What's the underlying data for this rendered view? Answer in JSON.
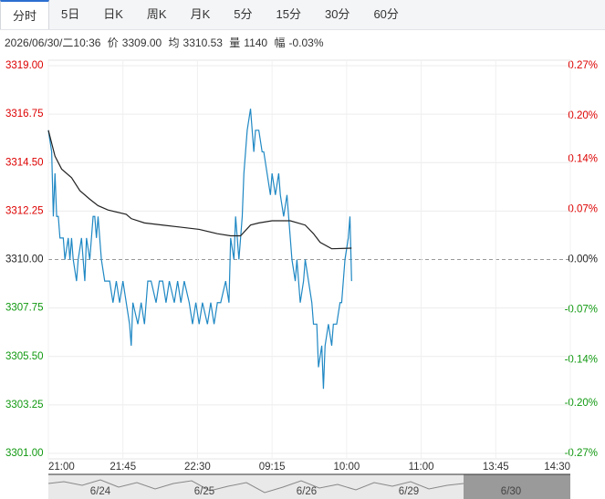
{
  "tabs": [
    "分时",
    "5日",
    "日K",
    "周K",
    "月K",
    "5分",
    "15分",
    "30分",
    "60分"
  ],
  "info": {
    "time": "2026/06/30/二10:36",
    "price_label": "价",
    "price": "3309.00",
    "avg_label": "均",
    "avg": "3310.53",
    "vol_label": "量",
    "vol": "1140",
    "amp_label": "幅",
    "amp": "-0.03%"
  },
  "chart_data": {
    "type": "line",
    "baseline": 3310,
    "grid": true,
    "up_color": "#dd0000",
    "down_color": "#119911",
    "flat_color": "#222222",
    "xlim": [
      0,
      315
    ],
    "xticks": [
      {
        "value": 0,
        "label": "21:00"
      },
      {
        "value": 45,
        "label": "21:45"
      },
      {
        "value": 90,
        "label": "22:30"
      },
      {
        "value": 135,
        "label": "09:15"
      },
      {
        "value": 180,
        "label": "10:00"
      },
      {
        "value": 225,
        "label": "11:00"
      },
      {
        "value": 270,
        "label": "13:45"
      },
      {
        "value": 315,
        "label": "14:30"
      }
    ],
    "ylim": [
      3301,
      3319
    ],
    "yticks": [
      {
        "value": 3319,
        "label": "3319.00"
      },
      {
        "value": 3316.75,
        "label": "3316.75"
      },
      {
        "value": 3314.5,
        "label": "3314.50"
      },
      {
        "value": 3312.25,
        "label": "3312.25"
      },
      {
        "value": 3310,
        "label": "3310.00"
      },
      {
        "value": 3307.75,
        "label": "3307.75"
      },
      {
        "value": 3305.5,
        "label": "3305.50"
      },
      {
        "value": 3303.25,
        "label": "3303.25"
      },
      {
        "value": 3301,
        "label": "3301.00"
      }
    ],
    "y2lim": [
      -0.27,
      0.27
    ],
    "y2ticks": [
      {
        "value": 0.27,
        "label": "0.27%"
      },
      {
        "value": 0.2,
        "label": "0.20%"
      },
      {
        "value": 0.14,
        "label": "0.14%"
      },
      {
        "value": 0.07,
        "label": "0.07%"
      },
      {
        "value": 0,
        "label": "0.00%"
      },
      {
        "value": -0.07,
        "label": "-0.07%"
      },
      {
        "value": -0.14,
        "label": "-0.14%"
      },
      {
        "value": -0.2,
        "label": "-0.20%"
      },
      {
        "value": -0.27,
        "label": "-0.27%"
      }
    ],
    "series": [
      {
        "color": "#1f88c4",
        "x": [
          0,
          2,
          3,
          4,
          5,
          6,
          7,
          9,
          10,
          12,
          13,
          14,
          15,
          17,
          18,
          20,
          22,
          23,
          25,
          27,
          28,
          29,
          30,
          32,
          34,
          35,
          37,
          39,
          41,
          43,
          45,
          47,
          49,
          50,
          51,
          54,
          56,
          58,
          60,
          62,
          65,
          67,
          69,
          71,
          73,
          76,
          78,
          80,
          82,
          85,
          87,
          89,
          91,
          93,
          96,
          98,
          100,
          102,
          104,
          107,
          109,
          110,
          112,
          113,
          115,
          117,
          118,
          119,
          120,
          122,
          124,
          125,
          127,
          129,
          130,
          132,
          134,
          135,
          137,
          139,
          140,
          142,
          144,
          145,
          147,
          149,
          150,
          152,
          154,
          155,
          157,
          159,
          160,
          162,
          163,
          165,
          166,
          167,
          169,
          171,
          172,
          174,
          176,
          177,
          179,
          181,
          182,
          183
        ],
        "values": [
          3316,
          3315,
          3312,
          3314,
          3312,
          3312,
          3311,
          3311,
          3310,
          3311,
          3310,
          3311,
          3310,
          3309,
          3310,
          3311,
          3309,
          3311,
          3310,
          3312,
          3312,
          3311,
          3312,
          3310,
          3309,
          3309,
          3309,
          3308,
          3309,
          3308,
          3309,
          3308,
          3307,
          3306,
          3308,
          3307,
          3308,
          3307,
          3309,
          3309,
          3308,
          3309,
          3309,
          3308,
          3309,
          3308,
          3309,
          3308,
          3309,
          3308,
          3307,
          3308,
          3307,
          3308,
          3307,
          3308,
          3307,
          3308,
          3308,
          3309,
          3308,
          3311,
          3310,
          3312,
          3310,
          3312,
          3314,
          3315,
          3316,
          3317,
          3315,
          3316,
          3316,
          3315,
          3315,
          3314,
          3313,
          3314,
          3313,
          3314,
          3313,
          3312,
          3313,
          3312,
          3310,
          3309,
          3310,
          3308,
          3309,
          3310,
          3309,
          3308,
          3307,
          3307,
          3305,
          3306,
          3304,
          3306,
          3307,
          3306,
          3307,
          3307,
          3308,
          3308,
          3310,
          3311,
          3312,
          3309
        ]
      },
      {
        "color": "#222222",
        "x": [
          0,
          2,
          4,
          8,
          14,
          19,
          25,
          30,
          36,
          47,
          50,
          58,
          69,
          80,
          91,
          102,
          110,
          116,
          122,
          127,
          135,
          146,
          155,
          160,
          164,
          171,
          183
        ],
        "values": [
          3316,
          3315.4,
          3314.8,
          3314.2,
          3313.8,
          3313.2,
          3312.8,
          3312.5,
          3312.3,
          3312.1,
          3311.9,
          3311.7,
          3311.6,
          3311.5,
          3311.4,
          3311.2,
          3311.1,
          3311.1,
          3311.6,
          3311.7,
          3311.8,
          3311.8,
          3311.6,
          3311.2,
          3310.8,
          3310.5,
          3310.53
        ]
      }
    ]
  },
  "navigator": {
    "dates": [
      "6/24",
      "6/25",
      "6/26",
      "6/29",
      "6/30"
    ]
  }
}
